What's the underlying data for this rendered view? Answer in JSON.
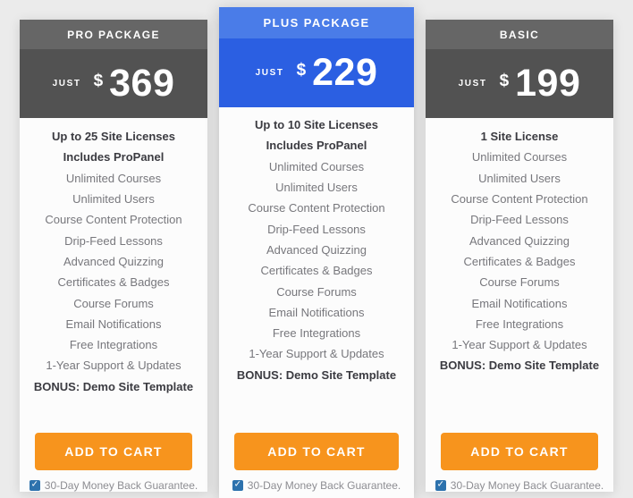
{
  "colors": {
    "accent_orange": "#f7941d",
    "featured_blue": "#4a7ce8",
    "featured_blue_dark": "#2b5fe2",
    "gray_header": "#666666",
    "gray_dark": "#525252",
    "checkbox_blue": "#2d72ad"
  },
  "plans": [
    {
      "name": "PRO PACKAGE",
      "featured": false,
      "price_prefix": "JUST",
      "currency": "$",
      "price": "369",
      "features": [
        {
          "text": "Up to 25 Site Licenses",
          "bold": true
        },
        {
          "text": "Includes ProPanel",
          "bold": true
        },
        {
          "text": "Unlimited Courses",
          "bold": false
        },
        {
          "text": "Unlimited Users",
          "bold": false
        },
        {
          "text": "Course Content Protection",
          "bold": false
        },
        {
          "text": "Drip-Feed Lessons",
          "bold": false
        },
        {
          "text": "Advanced Quizzing",
          "bold": false
        },
        {
          "text": "Certificates & Badges",
          "bold": false
        },
        {
          "text": "Course Forums",
          "bold": false
        },
        {
          "text": "Email Notifications",
          "bold": false
        },
        {
          "text": "Free Integrations",
          "bold": false
        },
        {
          "text": "1-Year Support & Updates",
          "bold": false
        },
        {
          "text": "BONUS: Demo Site Template",
          "bold": true
        }
      ],
      "button_label": "ADD TO CART",
      "guarantee_label": "30-Day Money Back Guarantee.",
      "guarantee_checked": true
    },
    {
      "name": "PLUS PACKAGE",
      "featured": true,
      "price_prefix": "JUST",
      "currency": "$",
      "price": "229",
      "features": [
        {
          "text": "Up to 10 Site Licenses",
          "bold": true
        },
        {
          "text": "Includes ProPanel",
          "bold": true
        },
        {
          "text": "Unlimited Courses",
          "bold": false
        },
        {
          "text": "Unlimited Users",
          "bold": false
        },
        {
          "text": "Course Content Protection",
          "bold": false
        },
        {
          "text": "Drip-Feed Lessons",
          "bold": false
        },
        {
          "text": "Advanced Quizzing",
          "bold": false
        },
        {
          "text": "Certificates & Badges",
          "bold": false
        },
        {
          "text": "Course Forums",
          "bold": false
        },
        {
          "text": "Email Notifications",
          "bold": false
        },
        {
          "text": "Free Integrations",
          "bold": false
        },
        {
          "text": "1-Year Support & Updates",
          "bold": false
        },
        {
          "text": "BONUS: Demo Site Template",
          "bold": true
        }
      ],
      "button_label": "ADD TO CART",
      "guarantee_label": "30-Day Money Back Guarantee.",
      "guarantee_checked": true
    },
    {
      "name": "BASIC",
      "featured": false,
      "price_prefix": "JUST",
      "currency": "$",
      "price": "199",
      "features": [
        {
          "text": "1 Site License",
          "bold": true
        },
        {
          "text": "Unlimited Courses",
          "bold": false
        },
        {
          "text": "Unlimited Users",
          "bold": false
        },
        {
          "text": "Course Content Protection",
          "bold": false
        },
        {
          "text": "Drip-Feed Lessons",
          "bold": false
        },
        {
          "text": "Advanced Quizzing",
          "bold": false
        },
        {
          "text": "Certificates & Badges",
          "bold": false
        },
        {
          "text": "Course Forums",
          "bold": false
        },
        {
          "text": "Email Notifications",
          "bold": false
        },
        {
          "text": "Free Integrations",
          "bold": false
        },
        {
          "text": "1-Year Support & Updates",
          "bold": false
        },
        {
          "text": "BONUS: Demo Site Template",
          "bold": true
        }
      ],
      "button_label": "ADD TO CART",
      "guarantee_label": "30-Day Money Back Guarantee.",
      "guarantee_checked": true
    }
  ]
}
